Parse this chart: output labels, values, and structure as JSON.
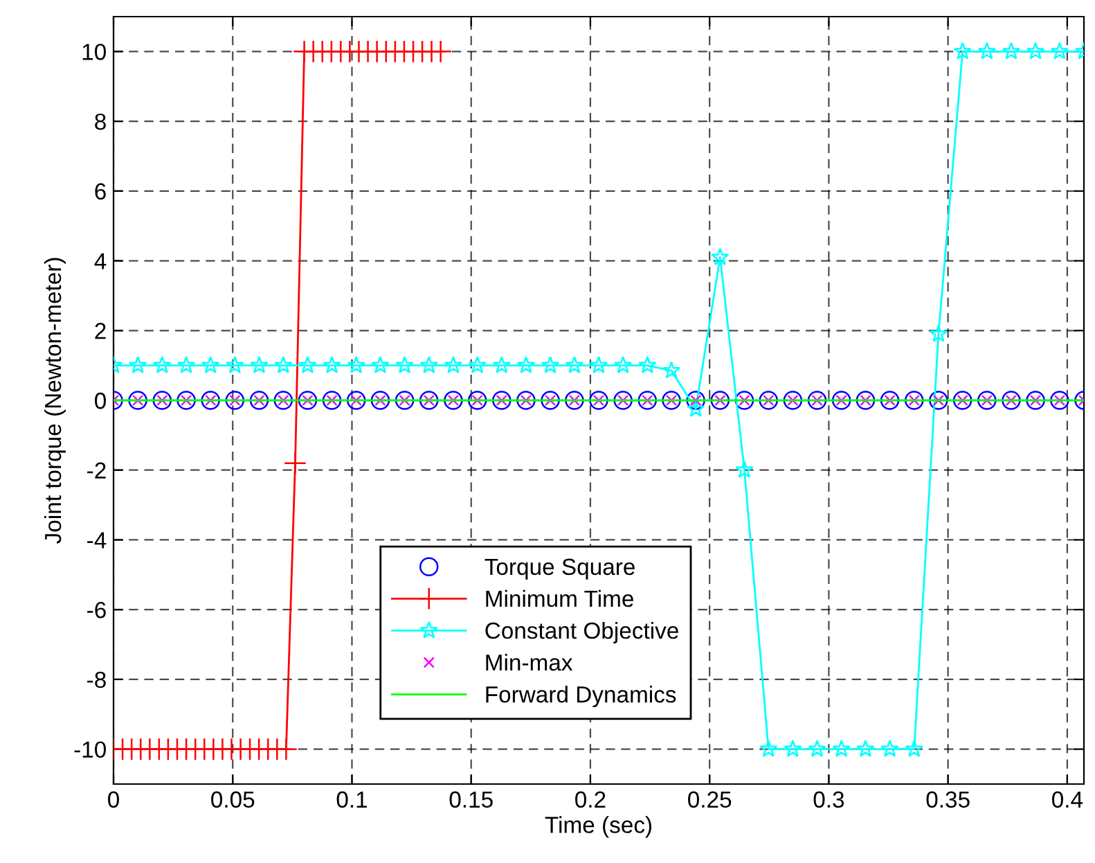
{
  "chart_data": {
    "type": "line",
    "xlabel": "Time (sec)",
    "ylabel": "Joint torque (Newton-meter)",
    "xlim": [
      0,
      0.407
    ],
    "ylim": [
      -11,
      11
    ],
    "xticks": [
      0,
      0.05,
      0.1,
      0.15,
      0.2,
      0.25,
      0.3,
      0.35,
      0.4
    ],
    "yticks": [
      -10,
      -8,
      -6,
      -4,
      -2,
      0,
      2,
      4,
      6,
      8,
      10
    ],
    "grid": true,
    "legend": "bottom",
    "series": [
      {
        "name": "Torque Square",
        "type": "scatter",
        "marker": "circle",
        "color": "#0000ff",
        "x": [
          0,
          0.0102,
          0.0204,
          0.0305,
          0.0407,
          0.0509,
          0.0611,
          0.0712,
          0.0814,
          0.0916,
          0.1018,
          0.1119,
          0.1221,
          0.1323,
          0.1425,
          0.1526,
          0.1628,
          0.173,
          0.1832,
          0.1933,
          0.2035,
          0.2137,
          0.2239,
          0.234,
          0.2442,
          0.2544,
          0.2646,
          0.2747,
          0.2849,
          0.2951,
          0.3053,
          0.3154,
          0.3256,
          0.3358,
          0.346,
          0.3561,
          0.3663,
          0.3765,
          0.3867,
          0.3968,
          0.407
        ],
        "values": [
          0,
          0,
          0,
          0,
          0,
          0,
          0,
          0,
          0,
          0,
          0,
          0,
          0,
          0,
          0,
          0,
          0,
          0,
          0,
          0,
          0,
          0,
          0,
          0,
          0,
          0,
          0,
          0,
          0,
          0,
          0,
          0,
          0,
          0,
          0,
          0,
          0,
          0,
          0,
          0,
          0
        ]
      },
      {
        "name": "Minimum Time",
        "marker": "plus",
        "color": "#ff0000",
        "x": [
          0,
          0.0038,
          0.0076,
          0.0114,
          0.0152,
          0.0191,
          0.0229,
          0.0267,
          0.0305,
          0.0343,
          0.0381,
          0.0419,
          0.0457,
          0.0495,
          0.0533,
          0.0572,
          0.061,
          0.0648,
          0.0686,
          0.0724,
          0.0762,
          0.08,
          0.0838,
          0.0876,
          0.0914,
          0.0953,
          0.0991,
          0.1029,
          0.1067,
          0.1105,
          0.1143,
          0.1181,
          0.1219,
          0.1257,
          0.1295,
          0.1334,
          0.1372
        ],
        "values": [
          -10,
          -10,
          -10,
          -10,
          -10,
          -10,
          -10,
          -10,
          -10,
          -10,
          -10,
          -10,
          -10,
          -10,
          -10,
          -10,
          -10,
          -10,
          -10,
          -10,
          -1.8,
          10,
          10,
          10,
          10,
          10,
          10,
          10,
          10,
          10,
          10,
          10,
          10,
          10,
          10,
          10,
          10
        ]
      },
      {
        "name": "Constant Objective",
        "marker": "star",
        "color": "#00ffff",
        "x": [
          0,
          0.0102,
          0.0204,
          0.0305,
          0.0407,
          0.0509,
          0.0611,
          0.0712,
          0.0814,
          0.0916,
          0.1018,
          0.1119,
          0.1221,
          0.1323,
          0.1425,
          0.1526,
          0.1628,
          0.173,
          0.1832,
          0.1933,
          0.2035,
          0.2137,
          0.2239,
          0.234,
          0.2442,
          0.2544,
          0.2646,
          0.2747,
          0.2849,
          0.2951,
          0.3053,
          0.3154,
          0.3256,
          0.3358,
          0.346,
          0.3561,
          0.3663,
          0.3765,
          0.3867,
          0.3968,
          0.407
        ],
        "values": [
          1,
          1,
          1,
          1,
          1,
          1,
          1,
          1,
          1,
          1,
          1,
          1,
          1,
          1,
          1,
          1,
          1,
          1,
          1,
          1,
          1,
          1,
          1,
          0.85,
          -0.25,
          4.1,
          -2,
          -10,
          -10,
          -10,
          -10,
          -10,
          -10,
          -10,
          1.9,
          10,
          10,
          10,
          10,
          10,
          10
        ]
      },
      {
        "name": "Min-max",
        "type": "scatter",
        "marker": "cross",
        "color": "#ff00ff",
        "x": [
          0,
          0.0102,
          0.0204,
          0.0305,
          0.0407,
          0.0509,
          0.0611,
          0.0712,
          0.0814,
          0.0916,
          0.1018,
          0.1119,
          0.1221,
          0.1323,
          0.1425,
          0.1526,
          0.1628,
          0.173,
          0.1832,
          0.1933,
          0.2035,
          0.2137,
          0.2239,
          0.234,
          0.2442,
          0.2544,
          0.2646,
          0.2747,
          0.2849,
          0.2951,
          0.3053,
          0.3154,
          0.3256,
          0.3358,
          0.346,
          0.3561,
          0.3663,
          0.3765,
          0.3867,
          0.3968,
          0.407
        ],
        "values": [
          0,
          0,
          0,
          0,
          0,
          0,
          0,
          0,
          0,
          0,
          0,
          0,
          0,
          0,
          0,
          0,
          0,
          0,
          0,
          0,
          0,
          0,
          0,
          0,
          0,
          0,
          0,
          0,
          0,
          0,
          0,
          0,
          0,
          0,
          0,
          0,
          0,
          0,
          0,
          0,
          0
        ]
      },
      {
        "name": "Forward Dynamics",
        "marker": "none",
        "color": "#00ff00",
        "x": [
          0,
          0.407
        ],
        "values": [
          0,
          0
        ]
      }
    ]
  }
}
